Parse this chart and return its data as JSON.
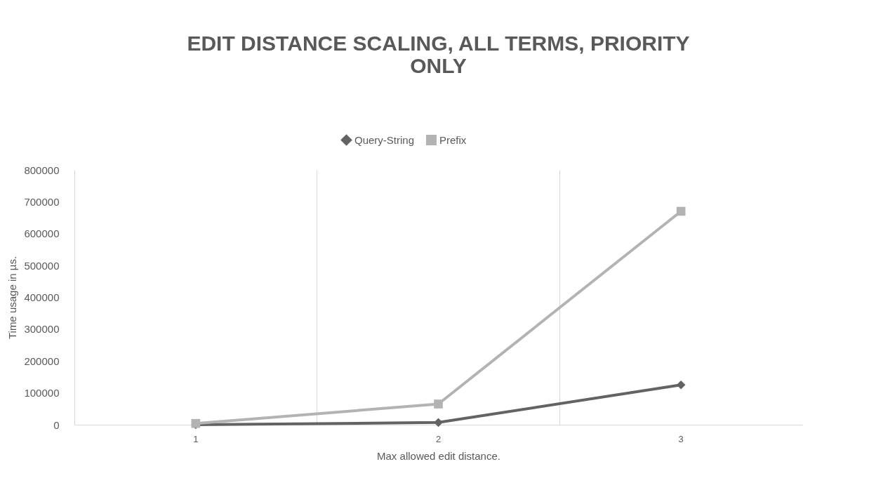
{
  "chart_data": {
    "type": "line",
    "title": "EDIT DISTANCE SCALING, ALL TERMS, PRIORITY ONLY",
    "xlabel": "Max allowed edit distance.",
    "ylabel": "Time usage in µs.",
    "categories": [
      "1",
      "2",
      "3"
    ],
    "series": [
      {
        "name": "Query-String",
        "color": "#636363",
        "marker": "diamond",
        "values": [
          0,
          7000,
          125000
        ]
      },
      {
        "name": "Prefix",
        "color": "#b3b3b3",
        "marker": "square",
        "values": [
          4000,
          65000,
          670000
        ]
      }
    ],
    "ylim": [
      0,
      800000
    ],
    "yticks": [
      0,
      100000,
      200000,
      300000,
      400000,
      500000,
      600000,
      700000,
      800000
    ],
    "grid": "x",
    "legend": "top",
    "line_style": "solid"
  }
}
